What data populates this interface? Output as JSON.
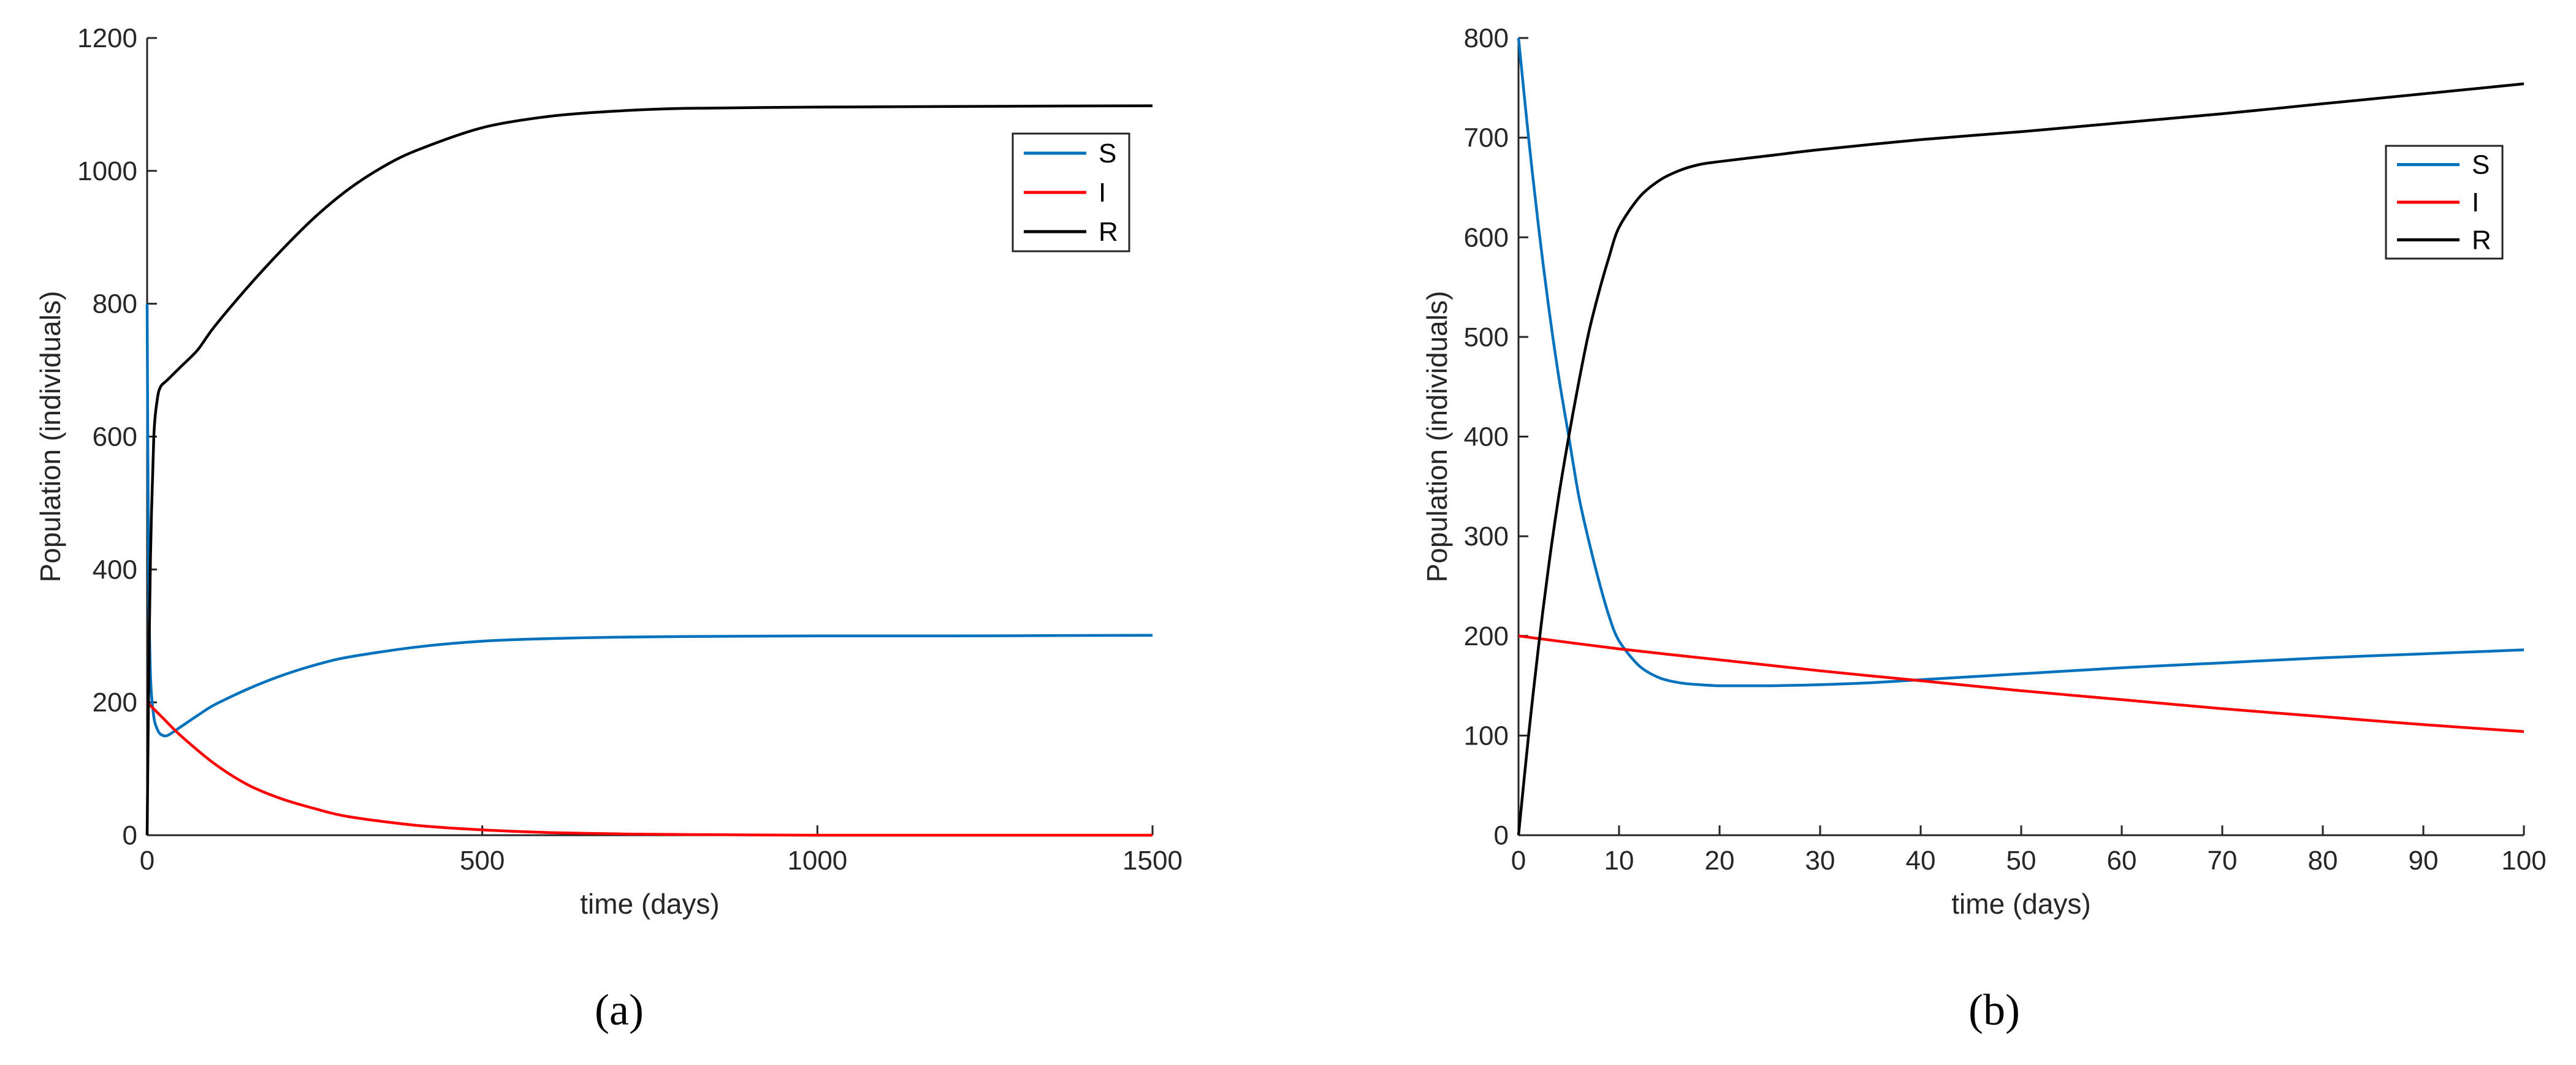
{
  "chart_data": [
    {
      "type": "line",
      "panel_label": "(a)",
      "xlabel": "time (days)",
      "ylabel": "Population (individuals)",
      "xlim": [
        0,
        1500
      ],
      "ylim": [
        0,
        1200
      ],
      "xticks": [
        0,
        500,
        1000,
        1500
      ],
      "yticks": [
        0,
        200,
        400,
        600,
        800,
        1000,
        1200
      ],
      "grid": false,
      "legend_position": "top-right",
      "series": [
        {
          "name": "S",
          "color": "#0072BD",
          "x": [
            0,
            2,
            5,
            10,
            15,
            20,
            30,
            50,
            75,
            100,
            150,
            200,
            250,
            300,
            400,
            500,
            600,
            700,
            800,
            1000,
            1200,
            1500
          ],
          "y": [
            800,
            420,
            240,
            178,
            160,
            152,
            150,
            163,
            180,
            196,
            220,
            240,
            256,
            268,
            283,
            292,
            296,
            298,
            299,
            300,
            300,
            301
          ]
        },
        {
          "name": "I",
          "color": "#FF0000",
          "x": [
            0,
            25,
            50,
            100,
            150,
            200,
            250,
            300,
            400,
            500,
            600,
            700,
            800,
            1000,
            1200,
            1500
          ],
          "y": [
            200,
            175,
            150,
            108,
            76,
            55,
            40,
            28,
            15,
            8,
            4,
            2,
            1,
            0,
            0,
            0
          ]
        },
        {
          "name": "R",
          "color": "#000000",
          "x": [
            0,
            2,
            5,
            10,
            15,
            20,
            30,
            50,
            75,
            100,
            150,
            200,
            250,
            300,
            350,
            400,
            500,
            600,
            700,
            800,
            1000,
            1200,
            1500
          ],
          "y": [
            0,
            200,
            420,
            600,
            655,
            675,
            685,
            705,
            730,
            765,
            825,
            880,
            930,
            972,
            1005,
            1030,
            1065,
            1082,
            1090,
            1094,
            1096,
            1097,
            1098
          ]
        }
      ]
    },
    {
      "type": "line",
      "panel_label": "(b)",
      "xlabel": "time (days)",
      "ylabel": "Population (individuals)",
      "xlim": [
        0,
        100
      ],
      "ylim": [
        0,
        800
      ],
      "xticks": [
        0,
        10,
        20,
        30,
        40,
        50,
        60,
        70,
        80,
        90,
        100
      ],
      "yticks": [
        0,
        100,
        200,
        300,
        400,
        500,
        600,
        700,
        800
      ],
      "grid": false,
      "legend_position": "top-right",
      "series": [
        {
          "name": "S",
          "color": "#0072BD",
          "x": [
            0,
            1,
            2,
            3,
            4,
            5,
            6,
            7,
            8,
            9,
            10,
            12,
            14,
            16,
            18,
            20,
            22,
            25,
            30,
            35,
            40,
            50,
            60,
            70,
            80,
            90,
            100
          ],
          "y": [
            800,
            700,
            610,
            530,
            460,
            400,
            340,
            295,
            255,
            220,
            195,
            170,
            158,
            153,
            151,
            150,
            150,
            150,
            151,
            153,
            156,
            162,
            168,
            173,
            178,
            182,
            186
          ]
        },
        {
          "name": "I",
          "color": "#FF0000",
          "x": [
            0,
            10,
            20,
            30,
            40,
            50,
            60,
            70,
            80,
            90,
            100
          ],
          "y": [
            200,
            187,
            176,
            165,
            155,
            145,
            136,
            127,
            119,
            111,
            104
          ]
        },
        {
          "name": "R",
          "color": "#000000",
          "x": [
            0,
            1,
            2,
            3,
            4,
            5,
            6,
            7,
            8,
            9,
            10,
            12,
            14,
            16,
            18,
            20,
            25,
            30,
            40,
            50,
            60,
            70,
            80,
            90,
            100
          ],
          "y": [
            0,
            100,
            190,
            270,
            340,
            400,
            455,
            505,
            545,
            580,
            610,
            640,
            657,
            667,
            673,
            676,
            682,
            688,
            698,
            706,
            715,
            724,
            734,
            744,
            754
          ]
        }
      ]
    }
  ]
}
